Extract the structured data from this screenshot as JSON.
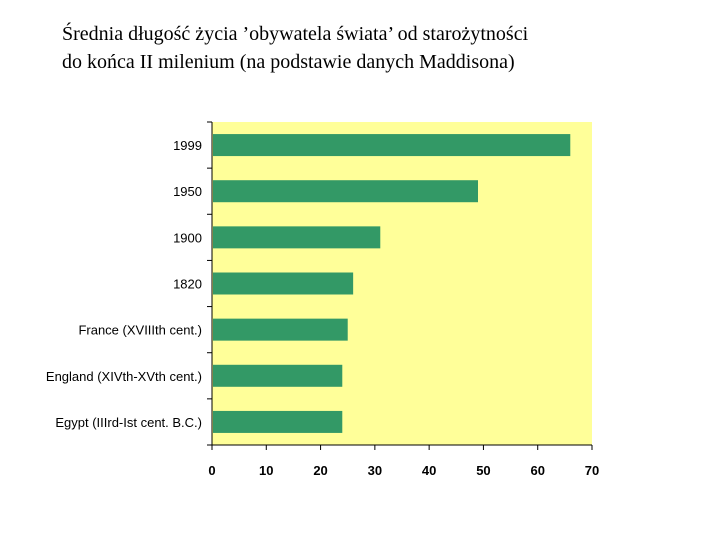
{
  "title": {
    "line1": "Średnia długość życia ’obywatela świata’ od starożytności",
    "line2": "do końca II milenium (na podstawie danych Maddisona)"
  },
  "colors": {
    "plot_background": "#ffff99",
    "bar": "#339966",
    "axis": "#000000"
  },
  "chart_data": {
    "type": "bar",
    "orientation": "horizontal",
    "categories": [
      "1999",
      "1950",
      "1900",
      "1820",
      "France (XVIIIth cent.)",
      "England (XIVth-XVth cent.)",
      "Egypt (IIIrd-Ist cent. B.C.)"
    ],
    "values": [
      66,
      49,
      31,
      26,
      25,
      24,
      24
    ],
    "xlim": [
      0,
      70
    ],
    "xticks": [
      0,
      10,
      20,
      30,
      40,
      50,
      60,
      70
    ],
    "xlabel": "",
    "ylabel": "",
    "grid": false,
    "legend": "none"
  }
}
